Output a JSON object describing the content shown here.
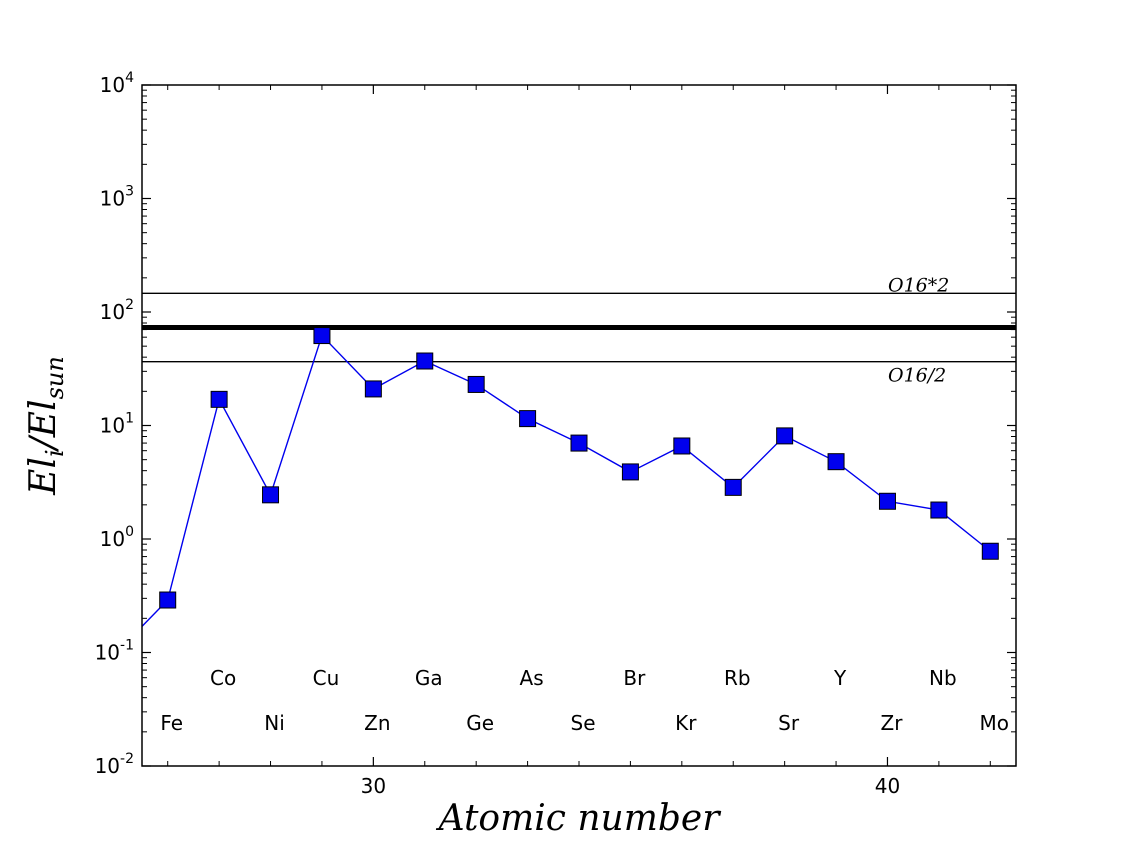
{
  "chart_data": {
    "type": "line",
    "title": "",
    "xlabel": "Atomic number",
    "ylabel_main": "El",
    "ylabel_sub1": "i",
    "ylabel_mid": "/El",
    "ylabel_sub2": "sun",
    "y_scale": "log",
    "xlim": [
      25.5,
      42.5
    ],
    "ylim": [
      0.01,
      10000
    ],
    "x_ticks": [
      30,
      40
    ],
    "y_ticks": [
      {
        "value": 0.01,
        "base": "10",
        "exp": "-2"
      },
      {
        "value": 0.1,
        "base": "10",
        "exp": "-1"
      },
      {
        "value": 1,
        "base": "10",
        "exp": "0"
      },
      {
        "value": 10,
        "base": "10",
        "exp": "1"
      },
      {
        "value": 100,
        "base": "10",
        "exp": "2"
      },
      {
        "value": 1000,
        "base": "10",
        "exp": "3"
      },
      {
        "value": 10000,
        "base": "10",
        "exp": "4"
      }
    ],
    "series": [
      {
        "color": "#0000ee",
        "marker": "square",
        "line_start": {
          "x": 25.5,
          "y": 0.17
        },
        "x": [
          26,
          27,
          28,
          29,
          30,
          31,
          32,
          33,
          34,
          35,
          36,
          37,
          38,
          39,
          40,
          41,
          42
        ],
        "y": [
          0.29,
          17,
          2.45,
          62,
          21,
          37,
          23,
          11.5,
          7.0,
          3.9,
          6.6,
          2.85,
          8.1,
          4.8,
          2.15,
          1.8,
          0.78
        ]
      }
    ],
    "reference_lines": [
      {
        "value": 146,
        "label": "O16*2",
        "width": 1.4
      },
      {
        "value": 73,
        "label": "",
        "width": 5
      },
      {
        "value": 36.5,
        "label": "O16/2",
        "width": 1.4
      }
    ],
    "element_labels": [
      {
        "symbol": "Fe",
        "x": 26,
        "row": "lower"
      },
      {
        "symbol": "Co",
        "x": 27,
        "row": "upper"
      },
      {
        "symbol": "Ni",
        "x": 28,
        "row": "lower"
      },
      {
        "symbol": "Cu",
        "x": 29,
        "row": "upper"
      },
      {
        "symbol": "Zn",
        "x": 30,
        "row": "lower"
      },
      {
        "symbol": "Ga",
        "x": 31,
        "row": "upper"
      },
      {
        "symbol": "Ge",
        "x": 32,
        "row": "lower"
      },
      {
        "symbol": "As",
        "x": 33,
        "row": "upper"
      },
      {
        "symbol": "Se",
        "x": 34,
        "row": "lower"
      },
      {
        "symbol": "Br",
        "x": 35,
        "row": "upper"
      },
      {
        "symbol": "Kr",
        "x": 36,
        "row": "lower"
      },
      {
        "symbol": "Rb",
        "x": 37,
        "row": "upper"
      },
      {
        "symbol": "Sr",
        "x": 38,
        "row": "lower"
      },
      {
        "symbol": "Y",
        "x": 39,
        "row": "upper"
      },
      {
        "symbol": "Zr",
        "x": 40,
        "row": "lower"
      },
      {
        "symbol": "Nb",
        "x": 41,
        "row": "upper"
      },
      {
        "symbol": "Mo",
        "x": 42,
        "row": "lower"
      }
    ],
    "grid": false,
    "legend": "none"
  }
}
